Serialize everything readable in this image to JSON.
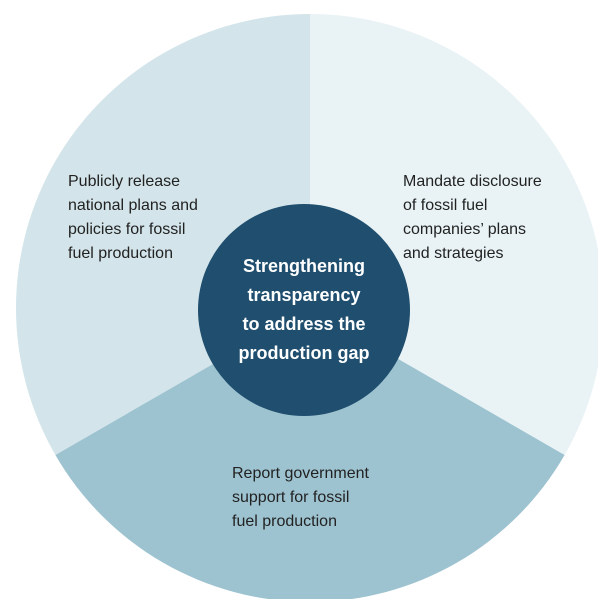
{
  "center": {
    "lines": [
      "Strengthening",
      "transparency",
      "to address the",
      "production gap"
    ]
  },
  "segments": [
    {
      "lines": [
        "Publicly release",
        "national plans and",
        "policies for fossil",
        "fuel production"
      ]
    },
    {
      "lines": [
        "Mandate disclosure",
        "of fossil fuel",
        "companies’ plans",
        "and strategies"
      ]
    },
    {
      "lines": [
        "Report government",
        "support for fossil",
        "fuel production"
      ]
    }
  ]
}
